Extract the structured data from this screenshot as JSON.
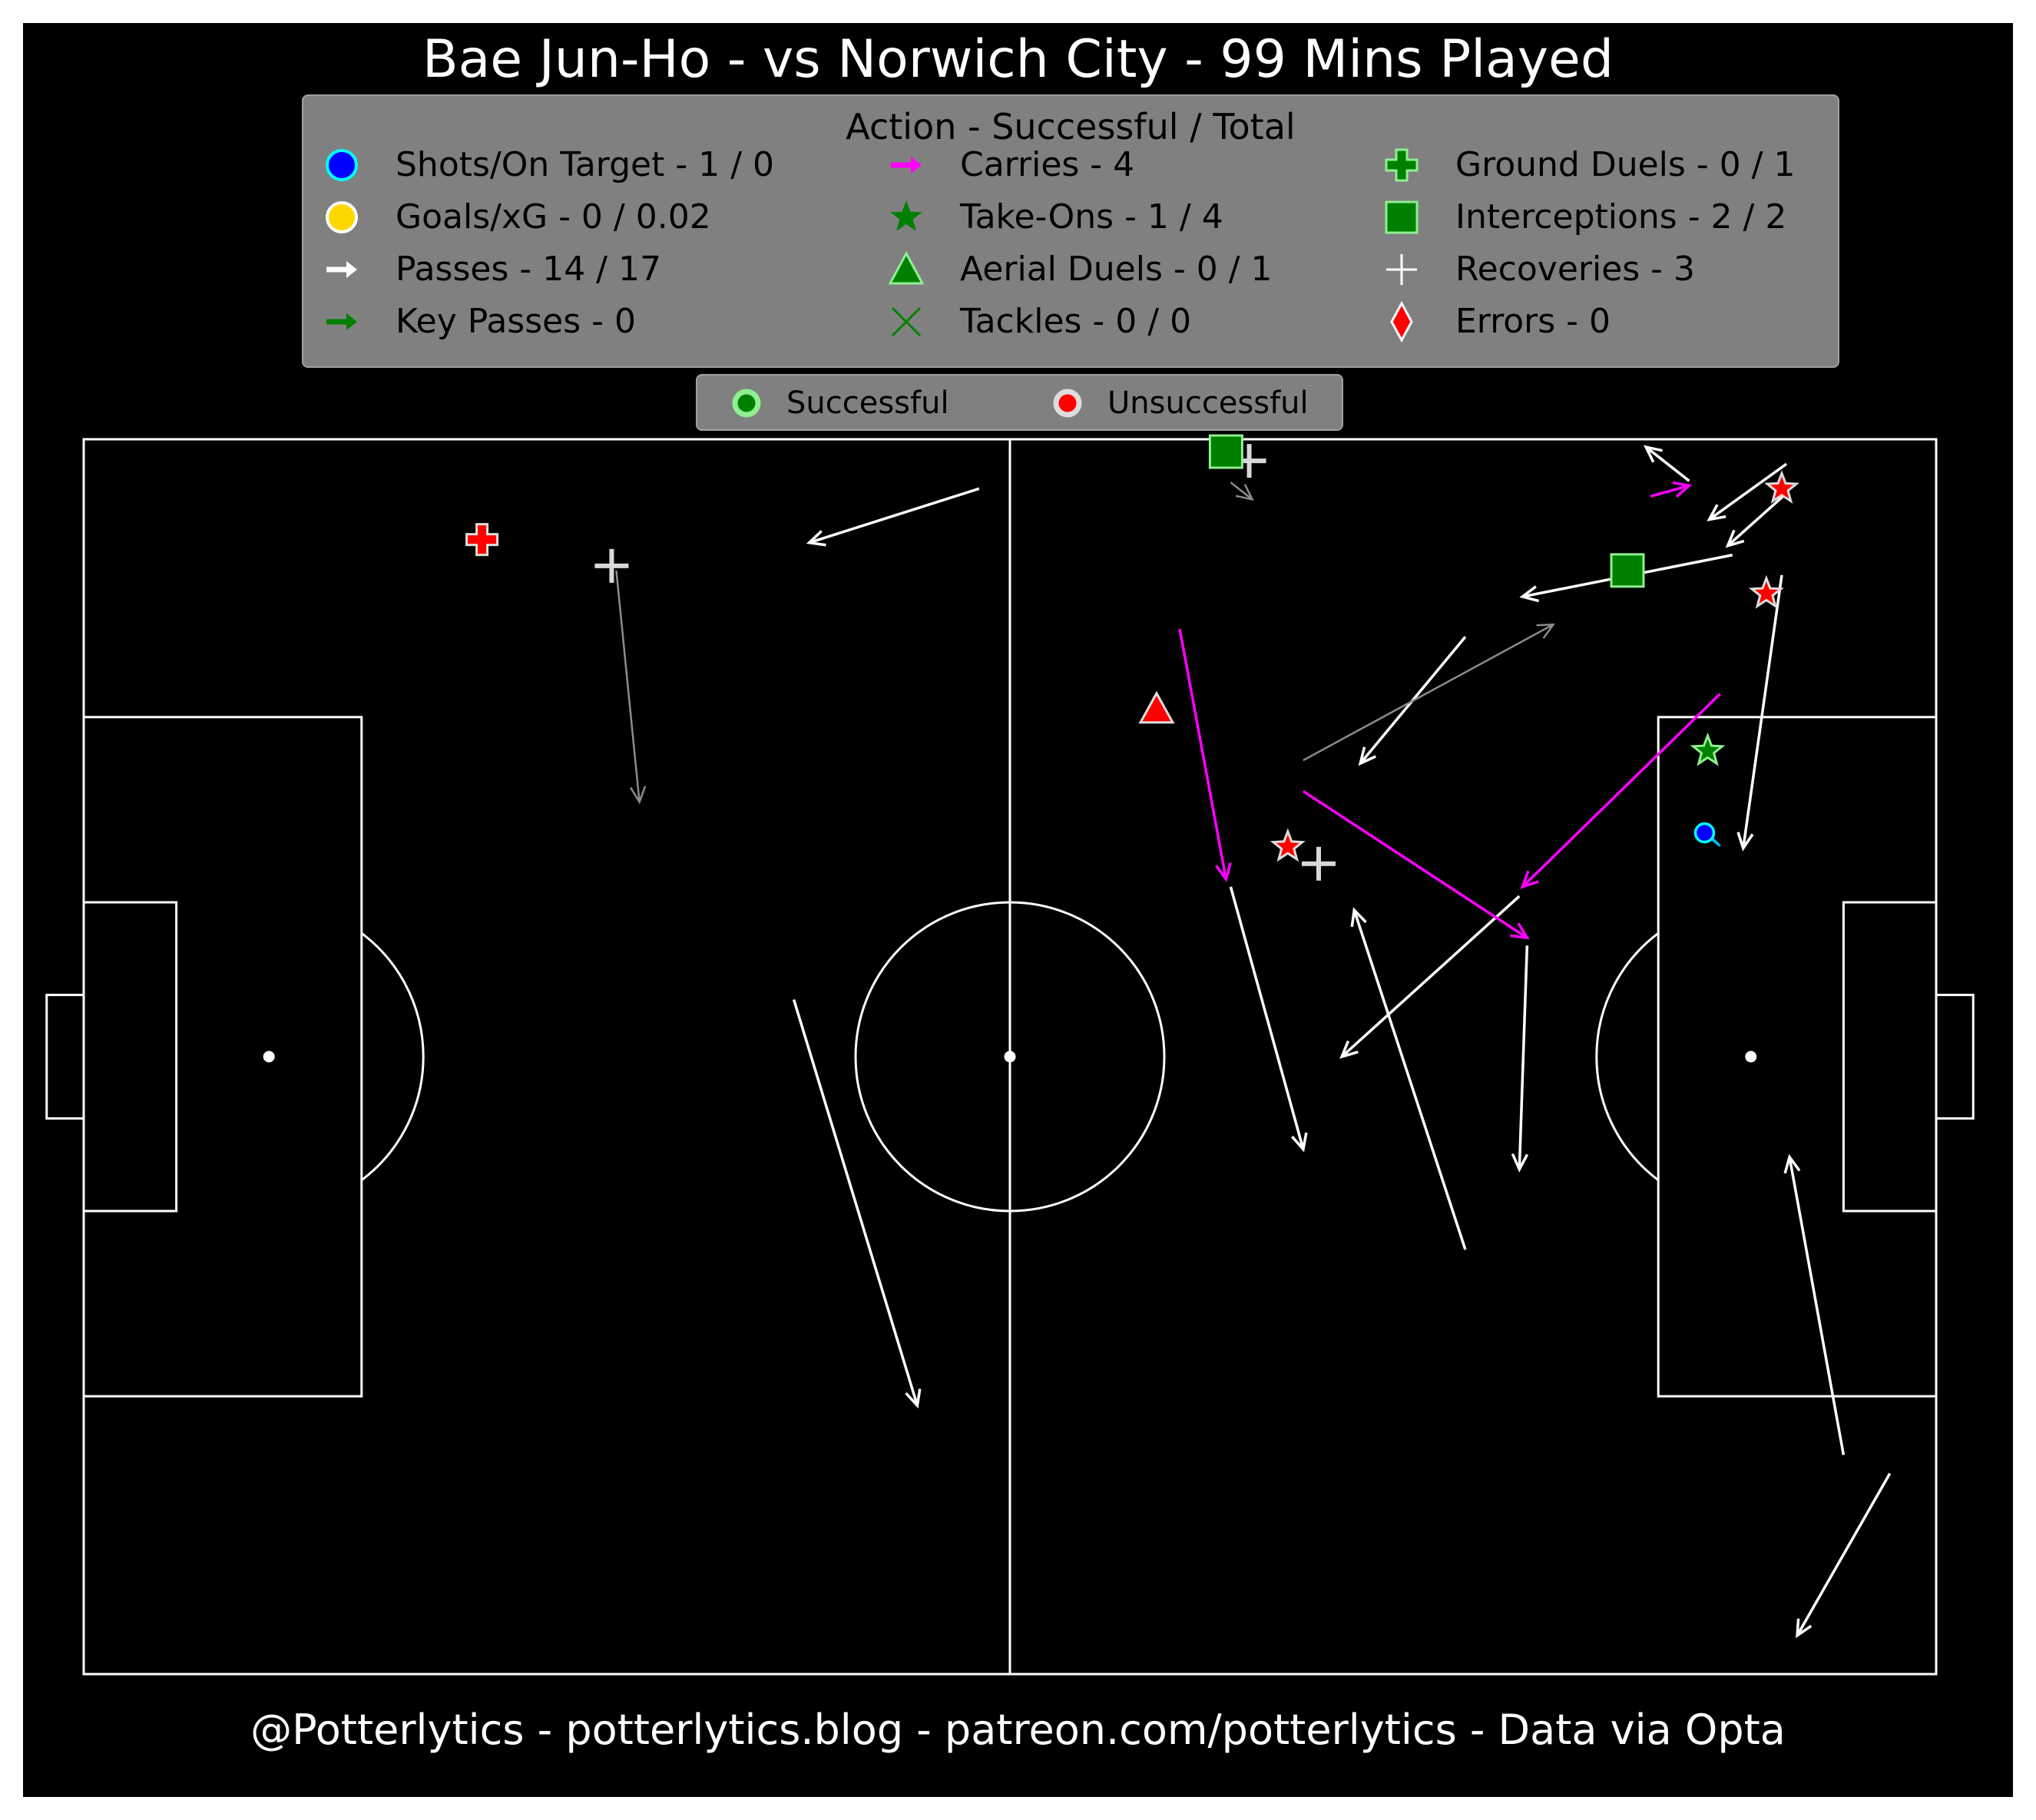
{
  "title": "Bae Jun-Ho - vs Norwich City - 99 Mins Played",
  "footer": "@Potterlytics - potterlytics.blog - patreon.com/potterlytics - Data via Opta",
  "legend": {
    "title": "Action - Successful / Total",
    "items": [
      {
        "label": "Shots/On Target - 1 / 0",
        "icon": "circle-icon",
        "color": "#0000ff",
        "edge": "#00ffff"
      },
      {
        "label": "Goals/xG - 0 / 0.02",
        "icon": "circle-icon",
        "color": "#ffd700",
        "edge": "#ffffff"
      },
      {
        "label": "Passes - 14 / 17",
        "icon": "arrow-icon",
        "color": "#ffffff"
      },
      {
        "label": "Key Passes - 0",
        "icon": "arrow-icon",
        "color": "#008000"
      },
      {
        "label": "Carries - 4",
        "icon": "arrow-icon",
        "color": "#ff00ff"
      },
      {
        "label": "Take-Ons - 1 / 4",
        "icon": "star-icon",
        "color": "#008000"
      },
      {
        "label": "Aerial Duels - 0 / 1",
        "icon": "triangle-icon",
        "color": "#008000",
        "edge": "#90ee90"
      },
      {
        "label": "Tackles - 0 / 0",
        "icon": "x-icon",
        "color": "#008000"
      },
      {
        "label": "Ground Duels - 0 / 1",
        "icon": "cross-icon",
        "color": "#008000",
        "edge": "#90ee90"
      },
      {
        "label": "Interceptions - 2 / 2",
        "icon": "square-icon",
        "color": "#008000",
        "edge": "#90ee90"
      },
      {
        "label": "Recoveries - 3",
        "icon": "plus-icon",
        "color": "#ffffff"
      },
      {
        "label": "Errors - 0",
        "icon": "diamond-icon",
        "color": "#ff0000",
        "edge": "#ffffff"
      }
    ]
  },
  "outcome_legend": {
    "successful": "Successful",
    "unsuccessful": "Unsuccessful",
    "successful_color": "#90ee90",
    "unsuccessful_color": "#ff0000"
  },
  "chart_data": {
    "type": "scatter",
    "pitch": {
      "length": 120,
      "width": 80,
      "orientation": "attacking left-to-right"
    },
    "passes": [
      {
        "x1": 58.0,
        "y1": 3.2,
        "x2": 47.0,
        "y2": 6.7,
        "outcome": "successful"
      },
      {
        "x1": 46.0,
        "y1": 36.3,
        "x2": 54.0,
        "y2": 62.6,
        "outcome": "successful"
      },
      {
        "x1": 74.3,
        "y1": 2.8,
        "x2": 75.7,
        "y2": 3.9,
        "outcome": "unsuccessful"
      },
      {
        "x1": 89.5,
        "y1": 12.8,
        "x2": 82.7,
        "y2": 21.0,
        "outcome": "successful"
      },
      {
        "x1": 79.0,
        "y1": 20.8,
        "x2": 95.2,
        "y2": 12.0,
        "outcome": "unsuccessful"
      },
      {
        "x1": 106.8,
        "y1": 7.5,
        "x2": 93.2,
        "y2": 10.2,
        "outcome": "successful"
      },
      {
        "x1": 104.0,
        "y1": 2.7,
        "x2": 101.2,
        "y2": 0.5,
        "outcome": "successful"
      },
      {
        "x1": 110.3,
        "y1": 1.6,
        "x2": 105.3,
        "y2": 5.2,
        "outcome": "successful"
      },
      {
        "x1": 110.3,
        "y1": 3.5,
        "x2": 106.5,
        "y2": 6.9,
        "outcome": "successful"
      },
      {
        "x1": 110.0,
        "y1": 8.8,
        "x2": 107.5,
        "y2": 26.5,
        "outcome": "successful"
      },
      {
        "x1": 93.0,
        "y1": 29.6,
        "x2": 81.5,
        "y2": 40.0,
        "outcome": "successful"
      },
      {
        "x1": 74.3,
        "y1": 29.0,
        "x2": 79.0,
        "y2": 46.0,
        "outcome": "successful"
      },
      {
        "x1": 93.5,
        "y1": 32.8,
        "x2": 93.0,
        "y2": 47.3,
        "outcome": "successful"
      },
      {
        "x1": 89.5,
        "y1": 52.5,
        "x2": 82.3,
        "y2": 30.5,
        "outcome": "successful"
      },
      {
        "x1": 114.0,
        "y1": 65.8,
        "x2": 110.5,
        "y2": 46.5,
        "outcome": "successful"
      },
      {
        "x1": 117.0,
        "y1": 67.0,
        "x2": 111.0,
        "y2": 77.5,
        "outcome": "successful"
      },
      {
        "x1": 34.5,
        "y1": 8.5,
        "x2": 36.0,
        "y2": 23.5,
        "outcome": "unsuccessful"
      }
    ],
    "carries": [
      {
        "x1": 71.0,
        "y1": 12.3,
        "x2": 74.0,
        "y2": 28.5
      },
      {
        "x1": 79.0,
        "y1": 22.8,
        "x2": 93.5,
        "y2": 32.3
      },
      {
        "x1": 106.0,
        "y1": 16.5,
        "x2": 93.2,
        "y2": 29.0
      },
      {
        "x1": 101.5,
        "y1": 3.7,
        "x2": 104.0,
        "y2": 3.0
      }
    ],
    "take_ons": [
      {
        "x": 110.0,
        "y": 3.2,
        "outcome": "unsuccessful"
      },
      {
        "x": 109.0,
        "y": 10.0,
        "outcome": "unsuccessful"
      },
      {
        "x": 105.2,
        "y": 20.2,
        "outcome": "successful"
      },
      {
        "x": 78.0,
        "y": 26.4,
        "outcome": "unsuccessful"
      }
    ],
    "shots": [
      {
        "x": 105.0,
        "y": 25.5,
        "on_target": false
      }
    ],
    "interceptions": [
      {
        "x": 74.0,
        "y": 0.8,
        "outcome": "successful"
      },
      {
        "x": 100.0,
        "y": 8.5,
        "outcome": "successful"
      }
    ],
    "aerial_duels": [
      {
        "x": 69.5,
        "y": 17.5,
        "outcome": "unsuccessful"
      }
    ],
    "ground_duels": [
      {
        "x": 25.8,
        "y": 6.5,
        "outcome": "unsuccessful"
      }
    ],
    "recoveries": [
      {
        "x": 34.2,
        "y": 8.2
      },
      {
        "x": 75.5,
        "y": 1.4
      },
      {
        "x": 80.0,
        "y": 27.5
      }
    ]
  }
}
